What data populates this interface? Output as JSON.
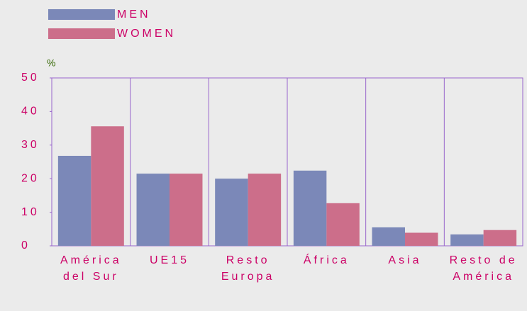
{
  "chart_data": {
    "type": "bar",
    "y_label": "%",
    "categories": [
      "América del Sur",
      "UE15",
      "Resto Europa",
      "África",
      "Asia",
      "Resto de América"
    ],
    "series": [
      {
        "name": "MEN",
        "color": "#7b88b8",
        "values": [
          26.8,
          21.5,
          20,
          22.4,
          5.5,
          3.4
        ]
      },
      {
        "name": "WOMEN",
        "color": "#cc6e8a",
        "values": [
          35.6,
          21.5,
          21.5,
          12.7,
          3.9,
          4.7
        ]
      }
    ],
    "ylim": [
      0,
      50
    ],
    "yticks": [
      0,
      10,
      20,
      30,
      40,
      50
    ],
    "grid": false,
    "legend": "top-left"
  }
}
